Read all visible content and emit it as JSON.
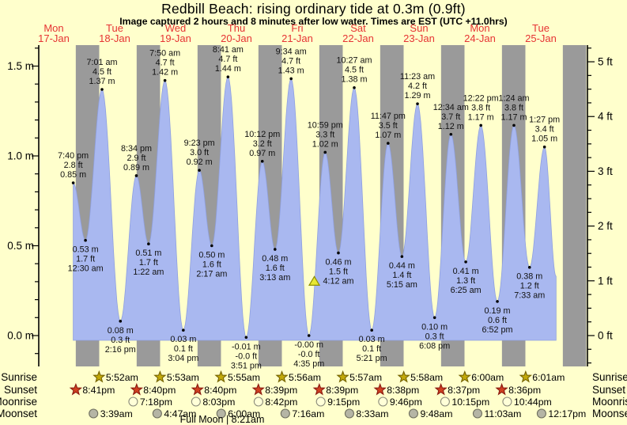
{
  "title": "Redbill Beach: rising  ordinary tide at 0.3m (0.9ft)",
  "subtitle": "Image captured 2 hours and 8 minutes after low water. Times are EST (UTC +11.0hrs)",
  "colors": {
    "background": "#ffffcc",
    "night_band": "#9a9a9a",
    "tide_fill": "#a9b8f0",
    "tide_outline": "#8fa0e0",
    "day_label": "#e63333",
    "annotation_text": "#111111",
    "axis": "#000000",
    "sunrise_star_fill": "#c2a90a",
    "sunrise_star_stroke": "#756300",
    "sunset_star_fill": "#d04020",
    "sunset_star_stroke": "#8a1a10",
    "moonrise_circle_fill": "#ffffd8",
    "moonrise_circle_stroke": "#8a8a7a",
    "moonset_circle_fill": "#b5b5a5",
    "moonset_circle_stroke": "#6f6f5f",
    "marker_triangle_fill": "#e8e833",
    "marker_triangle_stroke": "#8f8f00"
  },
  "chart_data": {
    "type": "area",
    "title": "Redbill Beach: rising  ordinary tide at 0.3m (0.9ft)",
    "ylabel_left": "metres",
    "ylabel_right": "feet",
    "ylim_m": [
      -0.17,
      1.62
    ],
    "grid": false,
    "y_axis": {
      "left_labels": [
        {
          "text": "0.0 m",
          "value": 0.0
        },
        {
          "text": "0.5 m",
          "value": 0.5
        },
        {
          "text": "1.0 m",
          "value": 1.0
        },
        {
          "text": "1.5 m",
          "value": 1.5
        }
      ],
      "right_labels": [
        {
          "text": "0 ft",
          "value": 0
        },
        {
          "text": "1 ft",
          "value": 1
        },
        {
          "text": "2 ft",
          "value": 2
        },
        {
          "text": "3 ft",
          "value": 3
        },
        {
          "text": "4 ft",
          "value": 4
        },
        {
          "text": "5 ft",
          "value": 5
        }
      ]
    },
    "days": [
      {
        "name": "Mon",
        "date": "17-Jan"
      },
      {
        "name": "Tue",
        "date": "18-Jan"
      },
      {
        "name": "Wed",
        "date": "19-Jan"
      },
      {
        "name": "Thu",
        "date": "20-Jan"
      },
      {
        "name": "Fri",
        "date": "21-Jan"
      },
      {
        "name": "Sat",
        "date": "22-Jan"
      },
      {
        "name": "Sun",
        "date": "23-Jan"
      },
      {
        "name": "Mon",
        "date": "24-Jan"
      },
      {
        "name": "Tue",
        "date": "25-Jan"
      }
    ],
    "events": [
      {
        "type": "high",
        "time": "7:40 pm",
        "ft": "2.8 ft",
        "m": "0.85 m",
        "t": 0.8194,
        "h": 0.85
      },
      {
        "type": "low",
        "time": "12:30 am",
        "ft": "1.7 ft",
        "m": "0.53 m",
        "t": 1.0208,
        "h": 0.53
      },
      {
        "type": "high",
        "time": "7:01 am",
        "ft": "4.5 ft",
        "m": "1.37 m",
        "t": 1.2924,
        "h": 1.37
      },
      {
        "type": "low",
        "time": "2:16 pm",
        "ft": "0.3 ft",
        "m": "0.08 m",
        "t": 1.5944,
        "h": 0.08
      },
      {
        "type": "high",
        "time": "8:34 pm",
        "ft": "2.9 ft",
        "m": "0.89 m",
        "t": 1.8569,
        "h": 0.89
      },
      {
        "type": "low",
        "time": "1:22 am",
        "ft": "1.7 ft",
        "m": "0.51 m",
        "t": 2.0569,
        "h": 0.51
      },
      {
        "type": "high",
        "time": "7:50 am",
        "ft": "4.7 ft",
        "m": "1.42 m",
        "t": 2.3264,
        "h": 1.42
      },
      {
        "type": "low",
        "time": "3:04 pm",
        "ft": "0.1 ft",
        "m": "0.03 m",
        "t": 2.6278,
        "h": 0.03
      },
      {
        "type": "high",
        "time": "9:23 pm",
        "ft": "3.0 ft",
        "m": "0.92 m",
        "t": 2.891,
        "h": 0.92
      },
      {
        "type": "low",
        "time": "2:17 am",
        "ft": "1.6 ft",
        "m": "0.50 m",
        "t": 3.0951,
        "h": 0.5
      },
      {
        "type": "high",
        "time": "8:41 am",
        "ft": "4.7 ft",
        "m": "1.44 m",
        "t": 3.3618,
        "h": 1.44
      },
      {
        "type": "low",
        "time": "3:51 pm",
        "ft": "-0.0 ft",
        "m": "-0.01 m",
        "t": 3.6604,
        "h": -0.01
      },
      {
        "type": "high",
        "time": "10:12 pm",
        "ft": "3.2 ft",
        "m": "0.97 m",
        "t": 3.925,
        "h": 0.97
      },
      {
        "type": "low",
        "time": "3:13 am",
        "ft": "1.6 ft",
        "m": "0.48 m",
        "t": 4.134,
        "h": 0.48
      },
      {
        "type": "high",
        "time": "9:34 am",
        "ft": "4.7 ft",
        "m": "1.43 m",
        "t": 4.3986,
        "h": 1.43
      },
      {
        "type": "low",
        "time": "4:35 pm",
        "ft": "-0.0 ft",
        "m": "-0.00 m",
        "t": 4.691,
        "h": 0.0
      },
      {
        "type": "high",
        "time": "10:59 pm",
        "ft": "3.3 ft",
        "m": "1.02 m",
        "t": 4.9576,
        "h": 1.02
      },
      {
        "type": "low",
        "time": "4:12 am",
        "ft": "1.5 ft",
        "m": "0.46 m",
        "t": 5.175,
        "h": 0.46
      },
      {
        "type": "high",
        "time": "10:27 am",
        "ft": "4.5 ft",
        "m": "1.38 m",
        "t": 5.4354,
        "h": 1.38
      },
      {
        "type": "low",
        "time": "5:21 pm",
        "ft": "0.1 ft",
        "m": "0.03 m",
        "t": 5.7229,
        "h": 0.03
      },
      {
        "type": "high",
        "time": "11:47 pm",
        "ft": "3.5 ft",
        "m": "1.07 m",
        "t": 5.991,
        "h": 1.07
      },
      {
        "type": "low",
        "time": "5:15 am",
        "ft": "1.4 ft",
        "m": "0.44 m",
        "t": 6.2188,
        "h": 0.44
      },
      {
        "type": "high",
        "time": "11:23 am",
        "ft": "4.2 ft",
        "m": "1.29 m",
        "t": 6.4743,
        "h": 1.29
      },
      {
        "type": "low",
        "time": "6:08 pm",
        "ft": "0.3 ft",
        "m": "0.10 m",
        "t": 6.7556,
        "h": 0.1
      },
      {
        "type": "high",
        "time": "12:34 am",
        "ft": "3.7 ft",
        "m": "1.12 m",
        "t": 7.0236,
        "h": 1.12
      },
      {
        "type": "low",
        "time": "6:25 am",
        "ft": "1.3 ft",
        "m": "0.41 m",
        "t": 7.2674,
        "h": 0.41
      },
      {
        "type": "high",
        "time": "12:22 pm",
        "ft": "3.8 ft",
        "m": "1.17 m",
        "t": 7.5153,
        "h": 1.17
      },
      {
        "type": "low",
        "time": "6:52 pm",
        "ft": "0.6 ft",
        "m": "0.19 m",
        "t": 7.7861,
        "h": 0.19
      },
      {
        "type": "high",
        "time": "1:24 am",
        "ft": "3.8 ft",
        "m": "1.17 m",
        "t": 8.0583,
        "h": 1.17
      },
      {
        "type": "low",
        "time": "7:33 am",
        "ft": "1.2 ft",
        "m": "0.38 m",
        "t": 8.3146,
        "h": 0.38
      },
      {
        "type": "high",
        "time": "1:27 pm",
        "ft": "3.4 ft",
        "m": "1.05 m",
        "t": 8.5604,
        "h": 1.05
      }
    ],
    "curve_end": {
      "t": 8.75,
      "h": 0.33
    },
    "current_marker": {
      "t": 4.7799,
      "h": 0.3,
      "note": "rising ordinary tide at 0.3m (0.9ft)"
    },
    "night_spans": {
      "sunset_frac": 0.8618,
      "sunrise_frac": 0.2465
    },
    "astro": {
      "rows": [
        {
          "key": "sunrise",
          "label": "Sunrise",
          "icon": "sunrise-star",
          "entries": [
            {
              "time": "5:52am",
              "t": 1.2444
            },
            {
              "time": "5:53am",
              "t": 2.2451
            },
            {
              "time": "5:55am",
              "t": 3.2465
            },
            {
              "time": "5:56am",
              "t": 4.2472
            },
            {
              "time": "5:57am",
              "t": 5.2479
            },
            {
              "time": "5:58am",
              "t": 6.2486
            },
            {
              "time": "6:00am",
              "t": 7.25
            },
            {
              "time": "6:01am",
              "t": 8.2507
            }
          ]
        },
        {
          "key": "sunset",
          "label": "Sunset",
          "icon": "sunset-star",
          "entries": [
            {
              "time": "8:41pm",
              "t": 0.8618
            },
            {
              "time": "8:40pm",
              "t": 1.8611
            },
            {
              "time": "8:40pm",
              "t": 2.8611
            },
            {
              "time": "8:39pm",
              "t": 3.8604
            },
            {
              "time": "8:39pm",
              "t": 4.8604
            },
            {
              "time": "8:38pm",
              "t": 5.8597
            },
            {
              "time": "8:37pm",
              "t": 6.859
            },
            {
              "time": "8:36pm",
              "t": 7.8583
            }
          ]
        },
        {
          "key": "moonrise",
          "label": "Moonrise",
          "icon": "moonrise-circle",
          "entries": [
            {
              "time": "7:18pm",
              "t": 1.8042
            },
            {
              "time": "8:03pm",
              "t": 2.8354
            },
            {
              "time": "8:42pm",
              "t": 3.8625
            },
            {
              "time": "9:15pm",
              "t": 4.8854
            },
            {
              "time": "9:46pm",
              "t": 5.9069
            },
            {
              "time": "10:15pm",
              "t": 6.9271
            },
            {
              "time": "10:44pm",
              "t": 7.9472
            }
          ]
        },
        {
          "key": "moonset",
          "label": "Moonset",
          "icon": "moonset-circle",
          "entries": [
            {
              "time": "3:39am",
              "t": 1.1521
            },
            {
              "time": "4:47am",
              "t": 2.1993
            },
            {
              "time": "6:00am",
              "t": 3.25
            },
            {
              "time": "7:16am",
              "t": 4.3028
            },
            {
              "time": "8:33am",
              "t": 5.3563
            },
            {
              "time": "9:48am",
              "t": 6.4083
            },
            {
              "time": "11:03am",
              "t": 7.4604
            },
            {
              "time": "12:17pm",
              "t": 8.5118
            }
          ]
        }
      ],
      "footnote": "Full Moon | 8:21am"
    }
  }
}
